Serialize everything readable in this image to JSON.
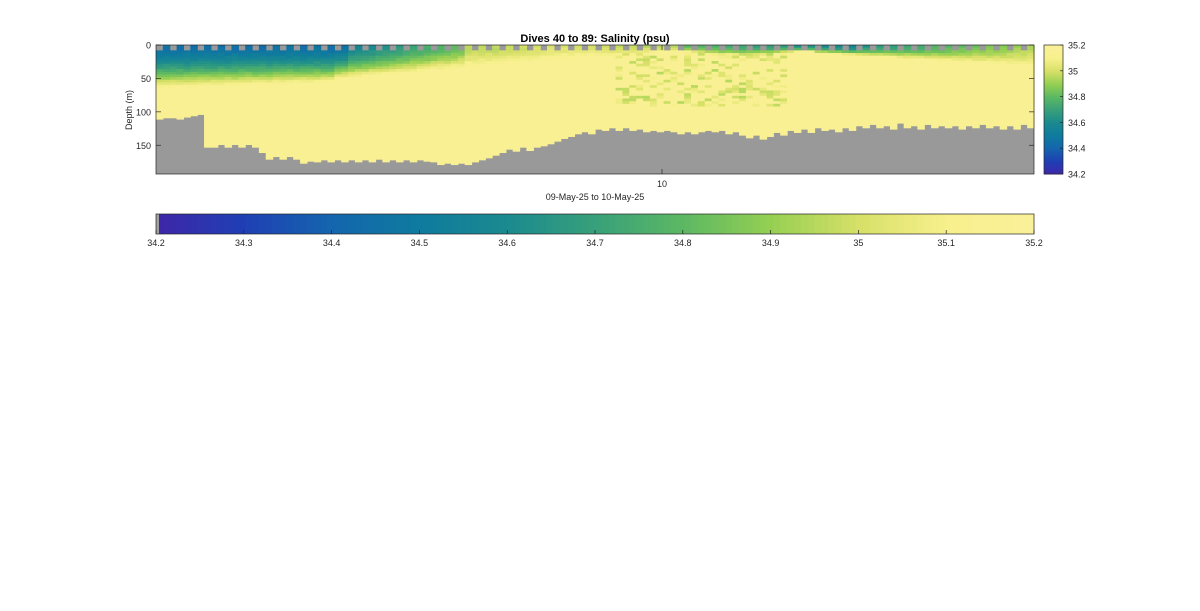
{
  "chart_data": [
    {
      "type": "heatmap",
      "title": "Dives 40 to 89: Salinity (psu)",
      "xlabel": "09-May-25 to 10-May-25",
      "ylabel": "Depth (m)",
      "xticks": [
        "10"
      ],
      "yticks": [
        0,
        50,
        100,
        150
      ],
      "ylim": [
        0,
        193
      ],
      "y_reversed": true,
      "n_profiles": 99,
      "depth_bin_m": 4,
      "dives": [
        40,
        89
      ],
      "bottom_depth_m": [
        111,
        109,
        109,
        111,
        108,
        106,
        104,
        153,
        153,
        149,
        153,
        149,
        153,
        149,
        153,
        161,
        171,
        167,
        171,
        167,
        171,
        177,
        174,
        175,
        172,
        175,
        172,
        175,
        172,
        175,
        172,
        175,
        171,
        175,
        172,
        175,
        172,
        175,
        172,
        174,
        175,
        179,
        177,
        179,
        177,
        179,
        175,
        172,
        169,
        165,
        161,
        156,
        159,
        153,
        158,
        153,
        151,
        148,
        144,
        140,
        137,
        133,
        130,
        133,
        126,
        128,
        124,
        128,
        124,
        128,
        126,
        130,
        128,
        130,
        128,
        130,
        133,
        130,
        133,
        130,
        128,
        130,
        128,
        133,
        130,
        135,
        139,
        135,
        141,
        137,
        131,
        135,
        128,
        131,
        126,
        131,
        124,
        128,
        126,
        130,
        124,
        128,
        121,
        124,
        119,
        124,
        121,
        126,
        117,
        124,
        121,
        126,
        119,
        124,
        121,
        124,
        121,
        126,
        121,
        124,
        119,
        124,
        121,
        126,
        121,
        126,
        119,
        124
      ],
      "water_mass_notes": [],
      "colorbar": {
        "min": 34.2,
        "max": 35.2,
        "ticks": [
          34.2,
          34.4,
          34.6,
          34.8,
          35,
          35.2
        ]
      },
      "colormap": "parula-like (dark blue to yellow)"
    },
    {
      "type": "heatmap",
      "role": "horizontal colorbar",
      "ticks": [
        34.2,
        34.3,
        34.4,
        34.5,
        34.6,
        34.7,
        34.8,
        34.9,
        35,
        35.1,
        35.2
      ],
      "tick_labels": [
        "34.2",
        "34.3",
        "34.4",
        "34.5",
        "34.6",
        "34.7",
        "34.8",
        "34.9",
        "35",
        "35.1",
        "35.2"
      ],
      "range": [
        34.2,
        35.2
      ]
    }
  ],
  "colors": {
    "land": "#999999",
    "nan": "#a0a0a0",
    "axis": "#262626",
    "background": "#ffffff",
    "cmap": [
      "#3e26a8",
      "#1f3fb4",
      "#1465ae",
      "#0f7b9e",
      "#1b8a8f",
      "#38a07a",
      "#5cb863",
      "#95cf52",
      "#d7e068",
      "#f7f08c",
      "#faf09a"
    ]
  }
}
